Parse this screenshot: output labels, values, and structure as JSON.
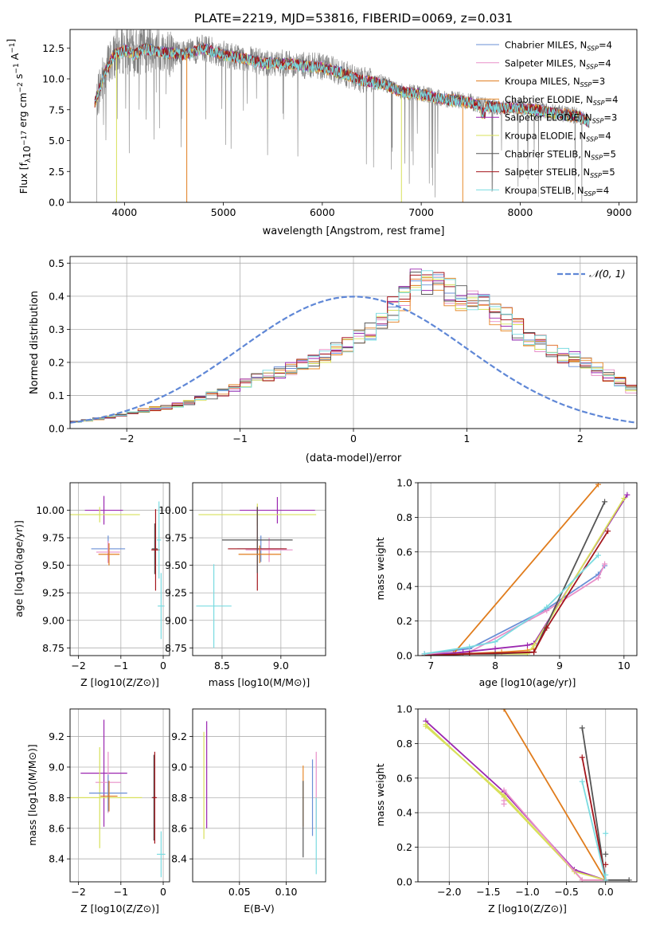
{
  "figure_title": "PLATE=2219, MJD=53816, FIBERID=0069, z=0.031",
  "colors": {
    "Chabrier MILES": "#6a8fd6",
    "Salpeter MILES": "#e88fc8",
    "Kroupa MILES": "#e07c1c",
    "Chabrier ELODIE": "#e88a2a",
    "Salpeter ELODIE": "#9b27b0",
    "Kroupa ELODIE": "#d8e05a",
    "Chabrier STELIB": "#555555",
    "Salpeter STELIB": "#a4151c",
    "Kroupa STELIB": "#7adbe0",
    "data": "#7f7f7f",
    "greenfit": "#a6d84a"
  },
  "chart_data": [
    {
      "id": "spectrum",
      "type": "line",
      "title": "PLATE=2219, MJD=53816, FIBERID=0069, z=0.031",
      "xlabel": "wavelength [Angstrom, rest frame]",
      "ylabel": "Flux [f_λ 10^-17 erg cm^-2 s^-1 A^-1]",
      "xlim": [
        3450,
        9180
      ],
      "ylim": [
        0,
        14
      ],
      "xticks": [
        "4000",
        "5000",
        "6000",
        "7000",
        "8000",
        "9000"
      ],
      "yticks": [
        "0.0",
        "2.5",
        "5.0",
        "7.5",
        "10.0",
        "12.5"
      ],
      "grid": false,
      "legend_position": "top-right",
      "legend": [
        "Chabrier MILES, N_SSP=4",
        "Salpeter MILES, N_SSP=4",
        "Kroupa MILES, N_SSP=3",
        "Chabrier ELODIE, N_SSP=4",
        "Salpeter ELODIE, N_SSP=3",
        "Kroupa ELODIE, N_SSP=4",
        "Chabrier STELIB, N_SSP=5",
        "Salpeter STELIB, N_SSP=5",
        "Kroupa STELIB, N_SSP=4"
      ],
      "continuum": {
        "x": [
          3700,
          3800,
          3900,
          4000,
          4100,
          4200,
          4400,
          4600,
          4800,
          5000,
          5200,
          5400,
          5600,
          5800,
          6000,
          6200,
          6400,
          6600,
          6800,
          7000,
          7200,
          7400,
          7600,
          7800,
          8000,
          8200,
          8400,
          8600,
          8700
        ],
        "y": [
          8.1,
          10.5,
          12.0,
          12.4,
          12.0,
          12.5,
          12.2,
          12.0,
          12.5,
          12.0,
          11.7,
          11.3,
          11.3,
          11.1,
          11.0,
          10.5,
          9.9,
          9.7,
          9.0,
          8.8,
          8.4,
          8.3,
          7.9,
          7.7,
          7.7,
          7.5,
          7.2,
          7.0,
          6.5
        ]
      },
      "dropouts": [
        {
          "series": "Kroupa MILES",
          "x": 4630
        },
        {
          "series": "Kroupa ELODIE",
          "x": 3920
        },
        {
          "series": "Kroupa ELODIE",
          "x": 6800
        },
        {
          "series": "Chabrier ELODIE",
          "x": 7420
        }
      ]
    },
    {
      "id": "residuals",
      "type": "bar",
      "xlabel": "(data-model)/error",
      "ylabel": "Normed distribution",
      "xlim": [
        -2.5,
        2.5
      ],
      "ylim": [
        0,
        0.52
      ],
      "xticks": [
        "−2",
        "−1",
        "0",
        "1",
        "2"
      ],
      "yticks": [
        "0.0",
        "0.1",
        "0.2",
        "0.3",
        "0.4",
        "0.5"
      ],
      "grid": true,
      "legend_position": "top-right",
      "legend": [
        "N(0,1)"
      ],
      "bin_width": 0.1,
      "bin_start": -2.5,
      "hist_base": [
        0.02,
        0.025,
        0.03,
        0.035,
        0.04,
        0.05,
        0.055,
        0.06,
        0.065,
        0.07,
        0.08,
        0.09,
        0.1,
        0.11,
        0.12,
        0.14,
        0.15,
        0.16,
        0.17,
        0.18,
        0.19,
        0.2,
        0.22,
        0.24,
        0.26,
        0.28,
        0.3,
        0.33,
        0.36,
        0.4,
        0.44,
        0.45,
        0.43,
        0.41,
        0.4,
        0.38,
        0.37,
        0.35,
        0.33,
        0.3,
        0.28,
        0.26,
        0.24,
        0.22,
        0.21,
        0.2,
        0.18,
        0.16,
        0.14,
        0.12,
        0.11,
        0.1,
        0.09,
        0.08,
        0.07,
        0.06,
        0.055,
        0.05,
        0.045,
        0.04,
        0.035,
        0.03
      ]
    },
    {
      "id": "age-vs-Z",
      "type": "scatter",
      "xlabel": "Z [log10(Z/Z⊙)]",
      "ylabel": "age  [log10(age/yr)]",
      "xlim": [
        -2.2,
        0.15
      ],
      "ylim": [
        8.68,
        10.25
      ],
      "xticks": [
        "−2",
        "−1",
        "0"
      ],
      "yticks": [
        "8.75",
        "9.00",
        "9.25",
        "9.50",
        "9.75",
        "10.00"
      ],
      "grid": true,
      "points": [
        {
          "series": "Chabrier MILES",
          "x": -1.3,
          "y": 9.65,
          "xerr": 0.4,
          "yerr": 0.12
        },
        {
          "series": "Salpeter MILES",
          "x": -1.3,
          "y": 9.62,
          "xerr": 0.28,
          "yerr": 0.1
        },
        {
          "series": "Kroupa MILES",
          "x": -1.28,
          "y": 9.6,
          "xerr": 0.25,
          "yerr": 0.1
        },
        {
          "series": "Salpeter ELODIE",
          "x": -1.4,
          "y": 10.0,
          "xerr": 0.45,
          "yerr": 0.13
        },
        {
          "series": "Kroupa ELODIE",
          "x": -1.5,
          "y": 9.96,
          "xerr": 0.95,
          "yerr": 0.07
        },
        {
          "series": "Chabrier STELIB",
          "x": -0.2,
          "y": 9.65,
          "xerr": 0.07,
          "yerr": 0.23
        },
        {
          "series": "Salpeter STELIB",
          "x": -0.18,
          "y": 9.64,
          "xerr": 0.1,
          "yerr": 0.37
        },
        {
          "series": "Kroupa STELIB",
          "x": -0.1,
          "y": 9.73,
          "xerr": 0.05,
          "yerr": 0.35
        },
        {
          "series": "Kroupa STELIB",
          "x": -0.05,
          "y": 9.13,
          "xerr": 0.08,
          "yerr": 0.3
        }
      ]
    },
    {
      "id": "age-vs-mass",
      "type": "scatter",
      "xlabel": "mass [log10(M/M⊙)]",
      "ylabel": "",
      "xlim": [
        8.25,
        9.38
      ],
      "ylim": [
        8.68,
        10.25
      ],
      "xticks": [
        "8.5",
        "9.0"
      ],
      "yticks": [
        "8.75",
        "9.00",
        "9.25",
        "9.50",
        "9.75",
        "10.00"
      ],
      "grid": true,
      "points": [
        {
          "series": "Salpeter ELODIE",
          "x": 8.97,
          "y": 10.0,
          "xerr": 0.32,
          "yerr": 0.12
        },
        {
          "series": "Kroupa ELODIE",
          "x": 8.8,
          "y": 9.96,
          "xerr": 0.5,
          "yerr": 0.1
        },
        {
          "series": "Chabrier MILES",
          "x": 8.83,
          "y": 9.65,
          "xerr": 0.2,
          "yerr": 0.12
        },
        {
          "series": "Salpeter MILES",
          "x": 8.9,
          "y": 9.64,
          "xerr": 0.2,
          "yerr": 0.11
        },
        {
          "series": "Salpeter STELIB",
          "x": 8.8,
          "y": 9.65,
          "xerr": 0.25,
          "yerr": 0.38
        },
        {
          "series": "Chabrier STELIB",
          "x": 8.8,
          "y": 9.73,
          "xerr": 0.3,
          "yerr": 0.3
        },
        {
          "series": "Kroupa MILES",
          "x": 8.82,
          "y": 9.6,
          "xerr": 0.18,
          "yerr": 0.08
        },
        {
          "series": "Kroupa STELIB",
          "x": 8.43,
          "y": 9.13,
          "xerr": 0.15,
          "yerr": 0.38
        }
      ]
    },
    {
      "id": "weight-vs-age",
      "type": "line",
      "xlabel": "age  [log10(age/yr)]",
      "ylabel": "mass weight",
      "xlim": [
        6.8,
        10.2
      ],
      "ylim": [
        0,
        1
      ],
      "xticks": [
        "7",
        "8",
        "9",
        "10"
      ],
      "yticks": [
        "0.0",
        "0.2",
        "0.4",
        "0.6",
        "0.8",
        "1.0"
      ],
      "grid": true,
      "series": [
        {
          "name": "Chabrier MILES",
          "x": [
            6.9,
            7.6,
            8.8,
            9.6,
            9.7
          ],
          "y": [
            0.01,
            0.04,
            0.27,
            0.47,
            0.52
          ]
        },
        {
          "name": "Salpeter MILES",
          "x": [
            6.9,
            7.6,
            8.8,
            9.6,
            9.7
          ],
          "y": [
            0.01,
            0.02,
            0.26,
            0.45,
            0.53
          ]
        },
        {
          "name": "Kroupa MILES",
          "x": [
            6.9,
            7.35,
            9.6
          ],
          "y": [
            0.0,
            0.01,
            0.99
          ]
        },
        {
          "name": "Chabrier ELODIE",
          "x": [
            6.9,
            7.5,
            8.1,
            8.5,
            8.6
          ],
          "y": [
            0.0,
            0.01,
            0.02,
            0.03,
            0.04
          ]
        },
        {
          "name": "Salpeter ELODIE",
          "x": [
            6.9,
            7.5,
            8.0,
            8.5,
            8.6,
            10.05
          ],
          "y": [
            0.0,
            0.02,
            0.04,
            0.06,
            0.07,
            0.93
          ]
        },
        {
          "name": "Kroupa ELODIE",
          "x": [
            6.9,
            7.6,
            8.5,
            8.6,
            10.0
          ],
          "y": [
            0.0,
            0.01,
            0.01,
            0.06,
            0.91
          ]
        },
        {
          "name": "Chabrier STELIB",
          "x": [
            6.9,
            7.6,
            8.0,
            8.6,
            9.7
          ],
          "y": [
            0.0,
            0.01,
            0.01,
            0.02,
            0.89
          ]
        },
        {
          "name": "Salpeter STELIB",
          "x": [
            6.9,
            7.6,
            8.6,
            8.8,
            9.75
          ],
          "y": [
            0.0,
            0.01,
            0.02,
            0.16,
            0.72
          ]
        },
        {
          "name": "Kroupa STELIB",
          "x": [
            6.9,
            7.6,
            8.0,
            8.8,
            9.6
          ],
          "y": [
            0.01,
            0.05,
            0.08,
            0.28,
            0.58
          ]
        }
      ]
    },
    {
      "id": "mass-vs-Z",
      "type": "scatter",
      "xlabel": "Z [log10(Z/Z⊙)]",
      "ylabel": "mass [log10(M/M⊙)]",
      "xlim": [
        -2.2,
        0.15
      ],
      "ylim": [
        8.25,
        9.38
      ],
      "xticks": [
        "−2",
        "−1",
        "0"
      ],
      "yticks": [
        "8.4",
        "8.6",
        "8.8",
        "9.0",
        "9.2"
      ],
      "grid": true,
      "points": [
        {
          "series": "Salpeter ELODIE",
          "x": -1.4,
          "y": 8.96,
          "xerr": 0.55,
          "yerr": 0.35
        },
        {
          "series": "Salpeter MILES",
          "x": -1.3,
          "y": 8.9,
          "xerr": 0.3,
          "yerr": 0.2
        },
        {
          "series": "Kroupa ELODIE",
          "x": -1.5,
          "y": 8.8,
          "xerr": 1.0,
          "yerr": 0.33
        },
        {
          "series": "Chabrier MILES",
          "x": -1.3,
          "y": 8.83,
          "xerr": 0.45,
          "yerr": 0.12
        },
        {
          "series": "Kroupa MILES",
          "x": -1.28,
          "y": 8.81,
          "xerr": 0.2,
          "yerr": 0.1
        },
        {
          "series": "Chabrier STELIB",
          "x": -0.22,
          "y": 8.8,
          "xerr": 0.05,
          "yerr": 0.28
        },
        {
          "series": "Salpeter STELIB",
          "x": -0.2,
          "y": 8.8,
          "xerr": 0.05,
          "yerr": 0.3
        },
        {
          "series": "Kroupa STELIB",
          "x": -0.05,
          "y": 8.43,
          "xerr": 0.1,
          "yerr": 0.15
        }
      ]
    },
    {
      "id": "mass-vs-EBV",
      "type": "scatter",
      "xlabel": "E(B-V)",
      "ylabel": "",
      "xlim": [
        0.0,
        0.142
      ],
      "ylim": [
        8.25,
        9.38
      ],
      "xticks": [
        "0.05",
        "0.10"
      ],
      "yticks": [
        "8.4",
        "8.6",
        "8.8",
        "9.0",
        "9.2"
      ],
      "grid": true,
      "points": [
        {
          "series": "Salpeter ELODIE",
          "x": 0.015,
          "y": 8.95,
          "xerr": 0,
          "yerr": 0.35
        },
        {
          "series": "Kroupa ELODIE",
          "x": 0.012,
          "y": 8.88,
          "xerr": 0,
          "yerr": 0.35
        },
        {
          "series": "Chabrier ELODIE",
          "x": 0.118,
          "y": 8.81,
          "xerr": 0,
          "yerr": 0.2
        },
        {
          "series": "Chabrier STELIB",
          "x": 0.118,
          "y": 8.66,
          "xerr": 0,
          "yerr": 0.25
        },
        {
          "series": "Chabrier MILES",
          "x": 0.128,
          "y": 8.8,
          "xerr": 0,
          "yerr": 0.25
        },
        {
          "series": "Salpeter MILES",
          "x": 0.132,
          "y": 8.85,
          "xerr": 0,
          "yerr": 0.25
        },
        {
          "series": "Kroupa STELIB",
          "x": 0.132,
          "y": 8.55,
          "xerr": 0,
          "yerr": 0.25
        }
      ]
    },
    {
      "id": "weight-vs-Z",
      "type": "line",
      "xlabel": "Z [log10(Z/Z⊙)]",
      "ylabel": "mass weight",
      "xlim": [
        -2.4,
        0.4
      ],
      "ylim": [
        0,
        1
      ],
      "xticks": [
        "−2.0",
        "−1.5",
        "−1.0",
        "−0.5",
        "0.0"
      ],
      "yticks": [
        "0.0",
        "0.2",
        "0.4",
        "0.6",
        "0.8",
        "1.0"
      ],
      "grid": true,
      "series": [
        {
          "name": "Salpeter ELODIE",
          "x": [
            -2.3,
            -1.3,
            -0.4,
            0.0
          ],
          "y": [
            0.93,
            0.52,
            0.07,
            0.01
          ]
        },
        {
          "name": "Kroupa ELODIE",
          "x": [
            -2.3,
            -1.3,
            -0.4,
            0.0
          ],
          "y": [
            0.91,
            0.49,
            0.06,
            0.01
          ]
        },
        {
          "name": "Kroupa ELODIE",
          "x": [
            -2.3,
            -1.3,
            -0.3,
            0.0
          ],
          "y": [
            0.9,
            0.5,
            0.01,
            0.01
          ]
        },
        {
          "name": "Salpeter MILES",
          "x": [
            -1.3,
            -0.3,
            0.0
          ],
          "y": [
            0.53,
            0.01,
            0.01
          ]
        },
        {
          "name": "Kroupa MILES",
          "x": [
            -1.3,
            0.0
          ],
          "y": [
            1.0,
            0.01
          ]
        },
        {
          "name": "Chabrier STELIB",
          "x": [
            -0.3,
            0.0,
            0.3
          ],
          "y": [
            0.89,
            0.01,
            0.01
          ]
        },
        {
          "name": "Salpeter STELIB",
          "x": [
            -0.3,
            0.0
          ],
          "y": [
            0.72,
            0.01
          ]
        },
        {
          "name": "Kroupa STELIB",
          "x": [
            -0.3,
            0.0
          ],
          "y": [
            0.58,
            0.01
          ]
        }
      ],
      "markers": [
        {
          "series": "Salpeter MILES",
          "x": -1.3,
          "y": 0.45
        },
        {
          "series": "Salpeter MILES",
          "x": -1.3,
          "y": 0.47
        },
        {
          "series": "Kroupa STELIB",
          "x": 0.0,
          "y": 0.28
        },
        {
          "series": "Chabrier STELIB",
          "x": 0.0,
          "y": 0.16
        },
        {
          "series": "Salpeter STELIB",
          "x": 0.0,
          "y": 0.1
        },
        {
          "series": "Kroupa STELIB",
          "x": 0.0,
          "y": 0.04
        }
      ]
    }
  ]
}
